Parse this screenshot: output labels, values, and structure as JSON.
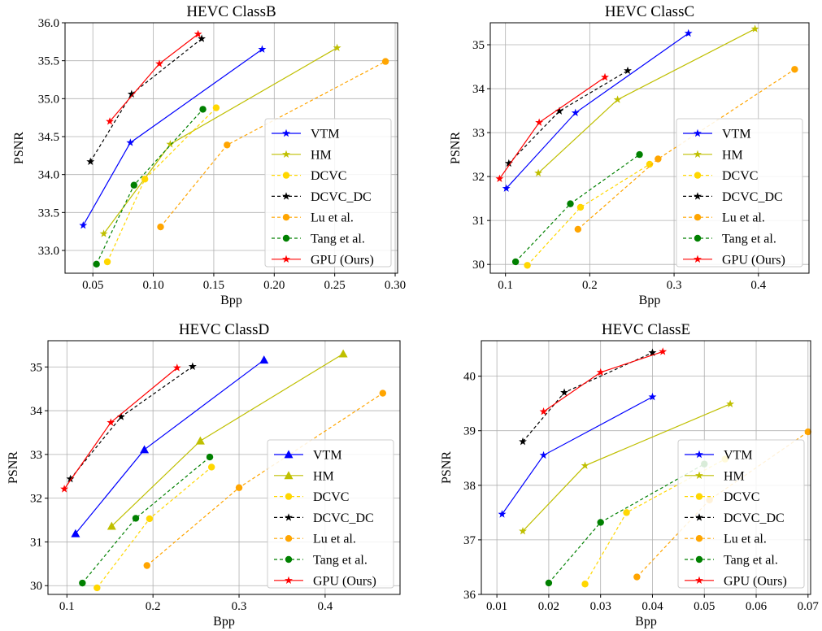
{
  "legend_labels": [
    "VTM",
    "HM",
    "DCVC",
    "DCVC_DC",
    "Lu et al.",
    "Tang et al.",
    "GPU (Ours)"
  ],
  "colors": {
    "VTM": "#0000ff",
    "HM": "#bfbf00",
    "DCVC": "#ffd700",
    "DCVC_DC": "#000000",
    "Lu et al.": "#ffa500",
    "Tang et al.": "#008000",
    "GPU (Ours)": "#ff0000"
  },
  "chart_data": [
    {
      "type": "line",
      "title": "HEVC ClassB",
      "xlabel": "Bpp",
      "ylabel": "PSNR",
      "xlim": [
        0.027,
        0.302
      ],
      "ylim": [
        32.7,
        36.0
      ],
      "xticks": [
        0.05,
        0.1,
        0.15,
        0.2,
        0.25,
        0.3
      ],
      "xtick_labels": [
        "0.05",
        "0.10",
        "0.15",
        "0.20",
        "0.25",
        "0.30"
      ],
      "yticks": [
        33.0,
        33.5,
        34.0,
        34.5,
        35.0,
        35.5,
        36.0
      ],
      "ytick_labels": [
        "33.0",
        "33.5",
        "34.0",
        "34.5",
        "35.0",
        "35.5",
        "36.0"
      ],
      "grid": true,
      "legend_position": "lower-right",
      "series": [
        {
          "name": "VTM",
          "marker": "star",
          "dash": false,
          "x": [
            0.042,
            0.081,
            0.19
          ],
          "y": [
            33.33,
            34.42,
            35.65
          ]
        },
        {
          "name": "HM",
          "marker": "star",
          "dash": false,
          "x": [
            0.059,
            0.114,
            0.252
          ],
          "y": [
            33.22,
            34.4,
            35.67
          ]
        },
        {
          "name": "DCVC",
          "marker": "circle",
          "dash": true,
          "x": [
            0.062,
            0.093,
            0.152
          ],
          "y": [
            32.85,
            33.94,
            34.88
          ]
        },
        {
          "name": "DCVC_DC",
          "marker": "star",
          "dash": true,
          "x": [
            0.048,
            0.082,
            0.14
          ],
          "y": [
            34.17,
            35.06,
            35.79
          ]
        },
        {
          "name": "Lu et al.",
          "marker": "circle",
          "dash": true,
          "x": [
            0.106,
            0.161,
            0.292
          ],
          "y": [
            33.31,
            34.39,
            35.49
          ]
        },
        {
          "name": "Tang et al.",
          "marker": "circle",
          "dash": true,
          "x": [
            0.053,
            0.084,
            0.141
          ],
          "y": [
            32.82,
            33.86,
            34.86
          ]
        },
        {
          "name": "GPU (Ours)",
          "marker": "star",
          "dash": false,
          "x": [
            0.064,
            0.105,
            0.137
          ],
          "y": [
            34.7,
            35.46,
            35.85
          ]
        }
      ]
    },
    {
      "type": "line",
      "title": "HEVC ClassC",
      "xlabel": "Bpp",
      "ylabel": "PSNR",
      "xlim": [
        0.082,
        0.46
      ],
      "ylim": [
        29.8,
        35.5
      ],
      "xticks": [
        0.1,
        0.2,
        0.3,
        0.4
      ],
      "xtick_labels": [
        "0.1",
        "0.2",
        "0.3",
        "0.4"
      ],
      "yticks": [
        30,
        31,
        32,
        33,
        34,
        35
      ],
      "ytick_labels": [
        "30",
        "31",
        "32",
        "33",
        "34",
        "35"
      ],
      "grid": true,
      "legend_position": "lower-right",
      "series": [
        {
          "name": "VTM",
          "marker": "star",
          "dash": false,
          "x": [
            0.101,
            0.183,
            0.317
          ],
          "y": [
            31.73,
            33.45,
            35.26
          ]
        },
        {
          "name": "HM",
          "marker": "star",
          "dash": false,
          "x": [
            0.139,
            0.233,
            0.396
          ],
          "y": [
            32.08,
            33.75,
            35.36
          ]
        },
        {
          "name": "DCVC",
          "marker": "circle",
          "dash": true,
          "x": [
            0.126,
            0.189,
            0.271
          ],
          "y": [
            29.98,
            31.3,
            32.28
          ]
        },
        {
          "name": "DCVC_DC",
          "marker": "star",
          "dash": true,
          "x": [
            0.104,
            0.164,
            0.245
          ],
          "y": [
            32.3,
            33.49,
            34.41
          ]
        },
        {
          "name": "Lu et al.",
          "marker": "circle",
          "dash": true,
          "x": [
            0.186,
            0.281,
            0.443
          ],
          "y": [
            30.8,
            32.4,
            34.44
          ]
        },
        {
          "name": "Tang et al.",
          "marker": "circle",
          "dash": true,
          "x": [
            0.112,
            0.177,
            0.259
          ],
          "y": [
            30.06,
            31.38,
            32.5
          ]
        },
        {
          "name": "GPU (Ours)",
          "marker": "star",
          "dash": false,
          "x": [
            0.093,
            0.14,
            0.218
          ],
          "y": [
            31.95,
            33.23,
            34.26
          ]
        }
      ]
    },
    {
      "type": "line",
      "title": "HEVC ClassD",
      "xlabel": "Bpp",
      "ylabel": "PSNR",
      "xlim": [
        0.078,
        0.487
      ],
      "ylim": [
        29.8,
        35.6
      ],
      "xticks": [
        0.1,
        0.2,
        0.3,
        0.4
      ],
      "xtick_labels": [
        "0.1",
        "0.2",
        "0.3",
        "0.4"
      ],
      "yticks": [
        30,
        31,
        32,
        33,
        34,
        35
      ],
      "ytick_labels": [
        "30",
        "31",
        "32",
        "33",
        "34",
        "35"
      ],
      "grid": true,
      "legend_position": "lower-right",
      "series": [
        {
          "name": "VTM",
          "marker": "triangle",
          "dash": false,
          "x": [
            0.11,
            0.19,
            0.329
          ],
          "y": [
            31.19,
            33.11,
            35.16
          ]
        },
        {
          "name": "HM",
          "marker": "triangle",
          "dash": false,
          "x": [
            0.152,
            0.255,
            0.421
          ],
          "y": [
            31.36,
            33.31,
            35.3
          ]
        },
        {
          "name": "DCVC",
          "marker": "circle",
          "dash": true,
          "x": [
            0.135,
            0.196,
            0.268
          ],
          "y": [
            29.95,
            31.53,
            32.71
          ]
        },
        {
          "name": "DCVC_DC",
          "marker": "star",
          "dash": true,
          "x": [
            0.104,
            0.163,
            0.246
          ],
          "y": [
            32.44,
            33.86,
            35.01
          ]
        },
        {
          "name": "Lu et al.",
          "marker": "circle",
          "dash": true,
          "x": [
            0.193,
            0.3,
            0.467
          ],
          "y": [
            30.46,
            32.24,
            34.4
          ]
        },
        {
          "name": "Tang et al.",
          "marker": "circle",
          "dash": true,
          "x": [
            0.118,
            0.18,
            0.266
          ],
          "y": [
            30.06,
            31.54,
            32.94
          ]
        },
        {
          "name": "GPU (Ours)",
          "marker": "star",
          "dash": false,
          "x": [
            0.097,
            0.151,
            0.228
          ],
          "y": [
            32.21,
            33.73,
            34.98
          ]
        }
      ]
    },
    {
      "type": "line",
      "title": "HEVC ClassE",
      "xlabel": "Bpp",
      "ylabel": "PSNR",
      "xlim": [
        0.007,
        0.0705
      ],
      "ylim": [
        36.0,
        40.65
      ],
      "xticks": [
        0.01,
        0.02,
        0.03,
        0.04,
        0.05,
        0.06,
        0.07
      ],
      "xtick_labels": [
        "0.01",
        "0.02",
        "0.03",
        "0.04",
        "0.05",
        "0.06",
        "0.07"
      ],
      "yticks": [
        36,
        37,
        38,
        39,
        40
      ],
      "ytick_labels": [
        "36",
        "37",
        "38",
        "39",
        "40"
      ],
      "grid": true,
      "legend_position": "lower-right",
      "series": [
        {
          "name": "VTM",
          "marker": "star",
          "dash": false,
          "x": [
            0.011,
            0.019,
            0.04
          ],
          "y": [
            37.47,
            38.55,
            39.62
          ]
        },
        {
          "name": "HM",
          "marker": "star",
          "dash": false,
          "x": [
            0.015,
            0.027,
            0.055
          ],
          "y": [
            37.16,
            38.36,
            39.49
          ]
        },
        {
          "name": "DCVC",
          "marker": "circle",
          "dash": true,
          "x": [
            0.027,
            0.035,
            0.054
          ],
          "y": [
            36.19,
            37.5,
            38.48
          ]
        },
        {
          "name": "DCVC_DC",
          "marker": "star",
          "dash": true,
          "x": [
            0.015,
            0.023,
            0.04
          ],
          "y": [
            38.8,
            39.7,
            40.43
          ]
        },
        {
          "name": "Lu et al.",
          "marker": "circle",
          "dash": true,
          "x": [
            0.037,
            0.051,
            0.07
          ],
          "y": [
            36.32,
            37.73,
            38.98
          ]
        },
        {
          "name": "Tang et al.",
          "marker": "circle",
          "dash": true,
          "x": [
            0.02,
            0.03,
            0.05
          ],
          "y": [
            36.21,
            37.32,
            38.39
          ]
        },
        {
          "name": "GPU (Ours)",
          "marker": "star",
          "dash": false,
          "x": [
            0.019,
            0.03,
            0.042
          ],
          "y": [
            39.35,
            40.07,
            40.45
          ]
        }
      ]
    }
  ]
}
